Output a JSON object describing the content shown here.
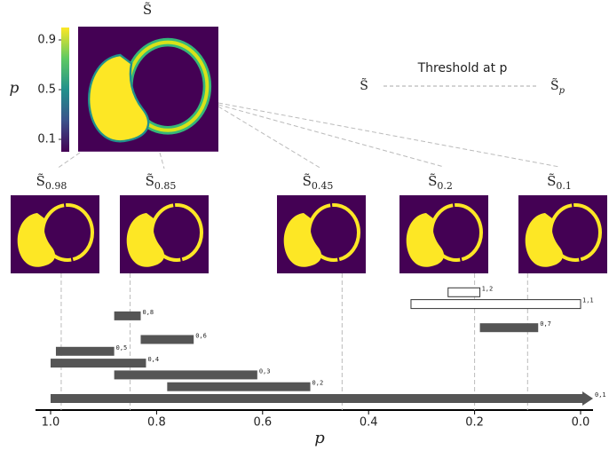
{
  "main": {
    "label": "S̃",
    "colorbar_label": "p",
    "colorbar_ticks": [
      0.9,
      0.5,
      0.1
    ]
  },
  "legend": {
    "left": "S̃",
    "label": "Threshold at p",
    "right_base": "S̃",
    "right_sub": "p"
  },
  "thresholds": [
    {
      "base": "S̃",
      "p": 0.98
    },
    {
      "base": "S̃",
      "p": 0.85
    },
    {
      "base": "S̃",
      "p": 0.45
    },
    {
      "base": "S̃",
      "p": 0.2
    },
    {
      "base": "S̃",
      "p": 0.1
    }
  ],
  "barcode": {
    "bars": [
      {
        "label": "0,1",
        "birth": 1.0,
        "death": null,
        "hollow": false
      },
      {
        "label": "0,2",
        "birth": 0.78,
        "death": 0.51,
        "hollow": false
      },
      {
        "label": "0,3",
        "birth": 0.88,
        "death": 0.61,
        "hollow": false
      },
      {
        "label": "0,4",
        "birth": 1.0,
        "death": 0.82,
        "hollow": false
      },
      {
        "label": "0,5",
        "birth": 0.99,
        "death": 0.88,
        "hollow": false
      },
      {
        "label": "0,6",
        "birth": 0.83,
        "death": 0.73,
        "hollow": false
      },
      {
        "label": "0,7",
        "birth": 0.19,
        "death": 0.08,
        "hollow": false
      },
      {
        "label": "0,8",
        "birth": 0.88,
        "death": 0.83,
        "hollow": false
      },
      {
        "label": "1,1",
        "birth": 0.32,
        "death": 0.0,
        "hollow": true
      },
      {
        "label": "1,2",
        "birth": 0.25,
        "death": 0.19,
        "hollow": true
      }
    ],
    "xlim": [
      1.0,
      0.0
    ],
    "xticks": [
      {
        "value": 1.0,
        "label": "1.0"
      },
      {
        "value": 0.8,
        "label": "0.8"
      },
      {
        "value": 0.6,
        "label": "0.6"
      },
      {
        "value": 0.4,
        "label": "0.4"
      },
      {
        "value": 0.2,
        "label": "0.2"
      },
      {
        "value": 0.0,
        "label": "0.0"
      }
    ],
    "xlabel": "p"
  }
}
